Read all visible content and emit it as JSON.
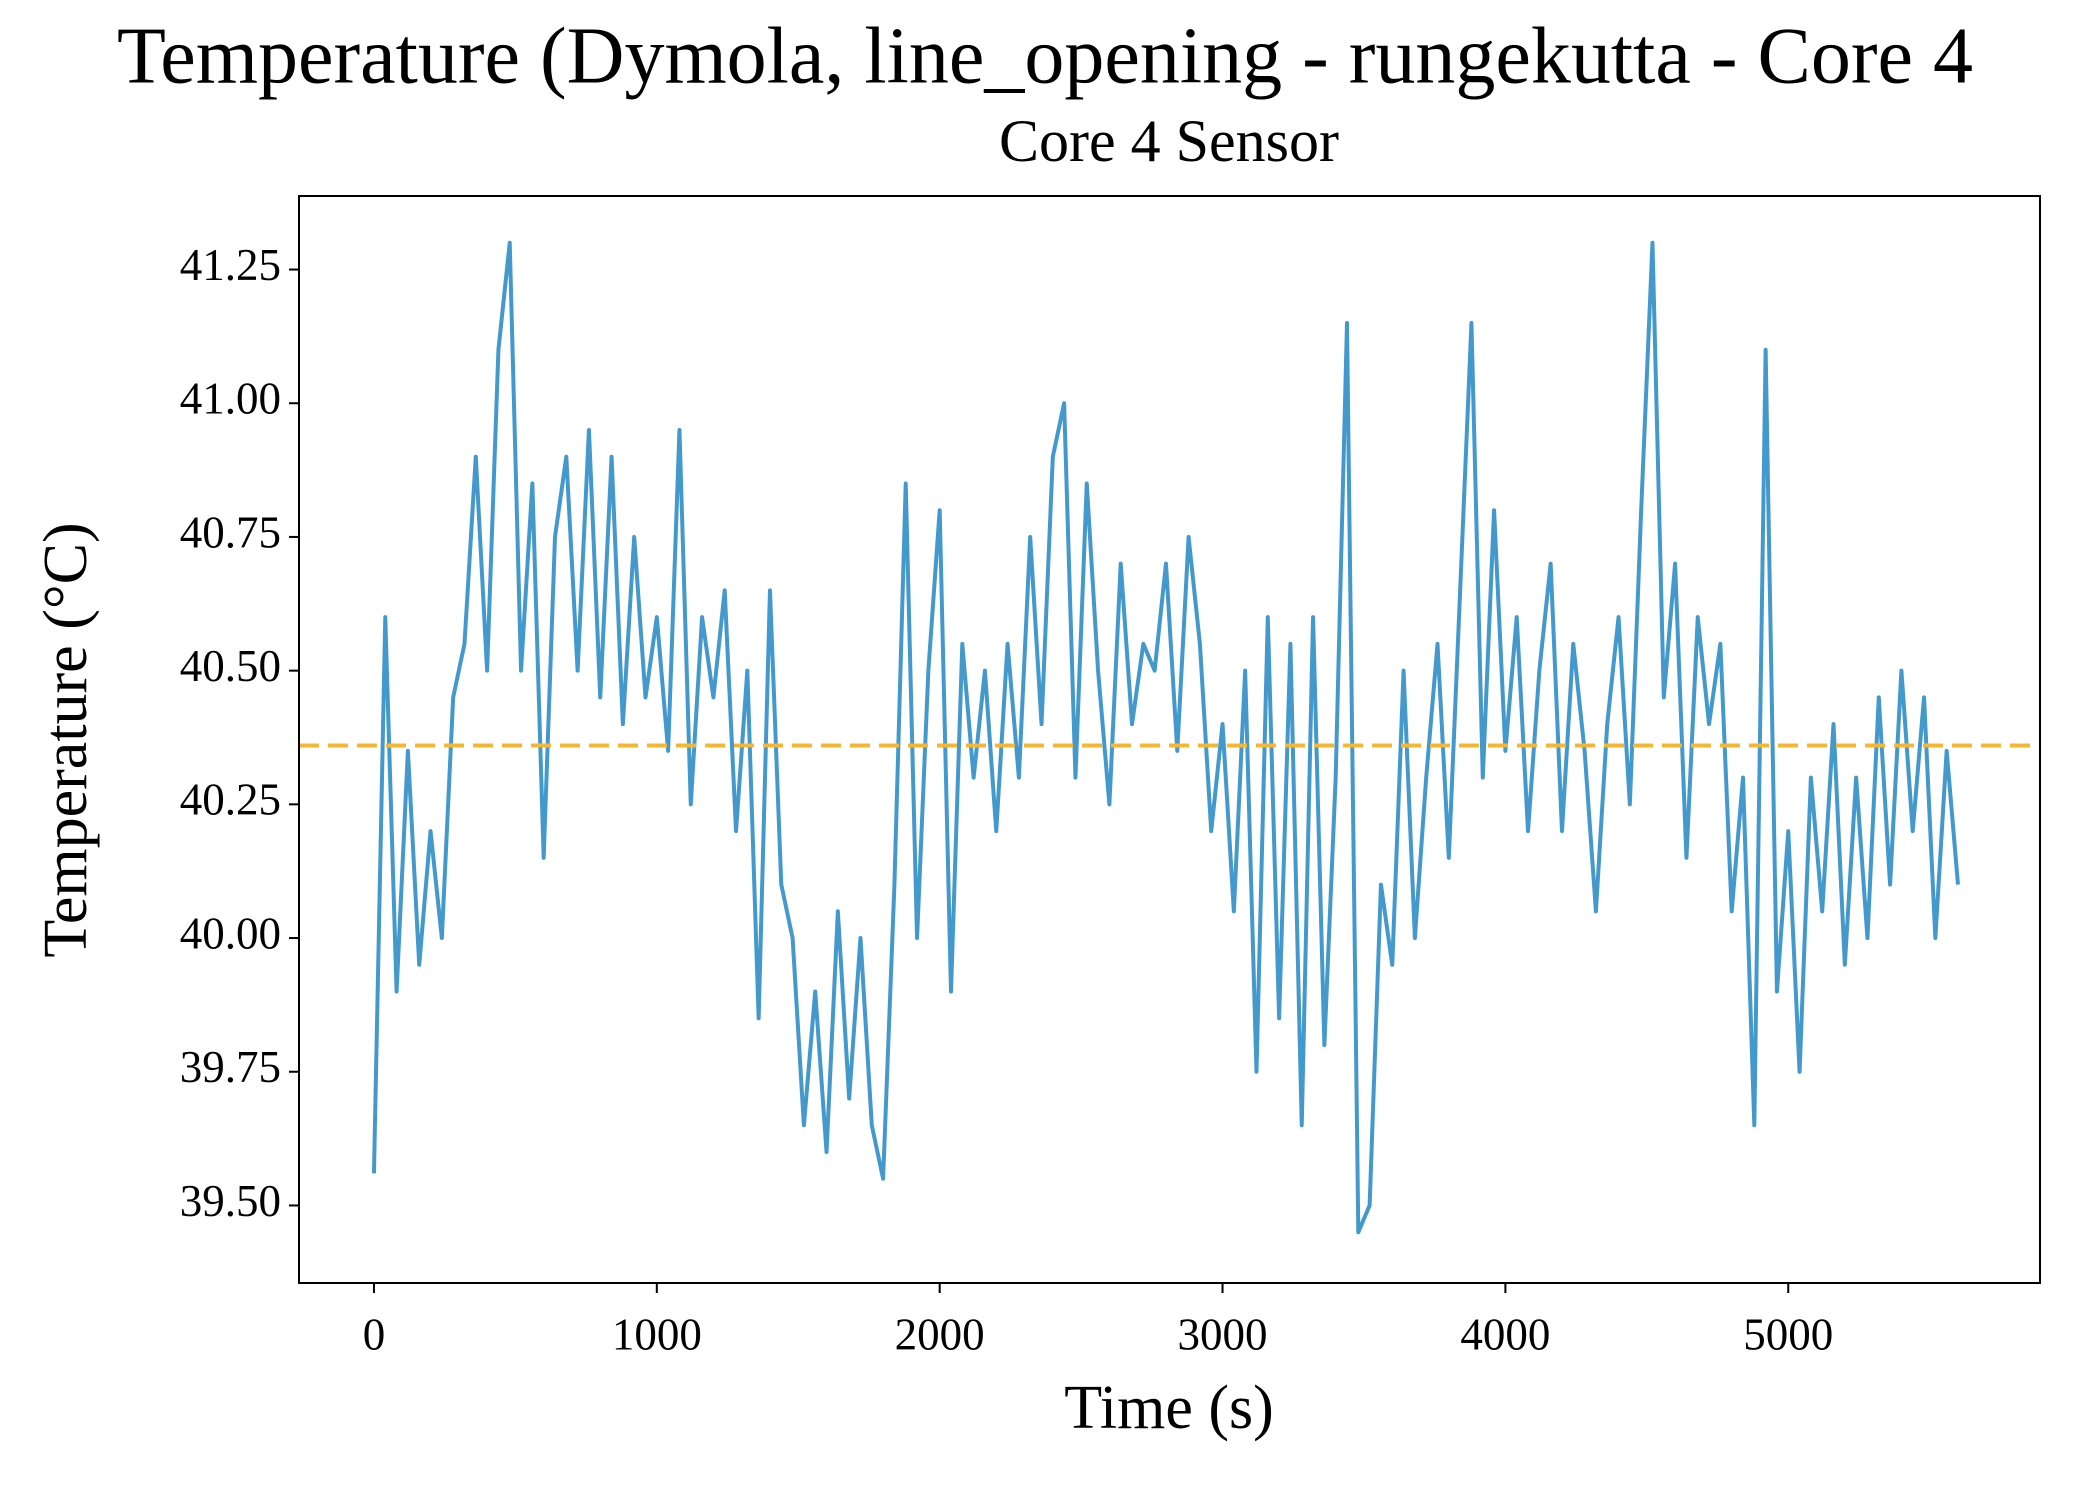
{
  "chart_data": {
    "type": "line",
    "title": "Temperature (Dymola, line_opening - rungekutta - Core 4",
    "subtitle": "Core 4 Sensor",
    "x_label": "Time (s)",
    "y_label": "Temperature (°C)",
    "x": [
      0,
      40,
      80,
      120,
      160,
      200,
      240,
      280,
      320,
      360,
      400,
      440,
      480,
      520,
      560,
      600,
      640,
      680,
      720,
      760,
      800,
      840,
      880,
      920,
      960,
      1000,
      1040,
      1080,
      1120,
      1160,
      1200,
      1240,
      1280,
      1320,
      1360,
      1400,
      1440,
      1480,
      1520,
      1560,
      1600,
      1640,
      1680,
      1720,
      1760,
      1800,
      1840,
      1880,
      1920,
      1960,
      2000,
      2040,
      2080,
      2120,
      2160,
      2200,
      2240,
      2280,
      2320,
      2360,
      2400,
      2440,
      2480,
      2520,
      2560,
      2600,
      2640,
      2680,
      2720,
      2760,
      2800,
      2840,
      2880,
      2920,
      2960,
      3000,
      3040,
      3080,
      3120,
      3160,
      3200,
      3240,
      3280,
      3320,
      3360,
      3400,
      3440,
      3480,
      3520,
      3560,
      3600,
      3640,
      3680,
      3720,
      3760,
      3800,
      3840,
      3880,
      3920,
      3960,
      4000,
      4040,
      4080,
      4120,
      4160,
      4200,
      4240,
      4280,
      4320,
      4360,
      4400,
      4440,
      4480,
      4520,
      4560,
      4600,
      4640,
      4680,
      4720,
      4760,
      4800,
      4840,
      4880,
      4920,
      4960,
      5000,
      5040,
      5080,
      5120,
      5160,
      5200,
      5240,
      5280,
      5320,
      5360,
      5400,
      5440,
      5480,
      5520,
      5560,
      5600
    ],
    "series": [
      {
        "color": "#4499cc",
        "values": [
          39.56,
          40.6,
          39.9,
          40.35,
          39.95,
          40.2,
          40.0,
          40.45,
          40.55,
          40.9,
          40.5,
          41.1,
          41.3,
          40.5,
          40.85,
          40.15,
          40.75,
          40.9,
          40.5,
          40.95,
          40.45,
          40.9,
          40.4,
          40.75,
          40.45,
          40.6,
          40.35,
          40.95,
          40.25,
          40.6,
          40.45,
          40.65,
          40.2,
          40.5,
          39.85,
          40.65,
          40.1,
          40.0,
          39.65,
          39.9,
          39.6,
          40.05,
          39.7,
          40.0,
          39.65,
          39.55,
          40.1,
          40.85,
          40.0,
          40.5,
          40.8,
          39.9,
          40.55,
          40.3,
          40.5,
          40.2,
          40.55,
          40.3,
          40.75,
          40.4,
          40.9,
          41.0,
          40.3,
          40.85,
          40.5,
          40.25,
          40.7,
          40.4,
          40.55,
          40.5,
          40.7,
          40.35,
          40.75,
          40.55,
          40.2,
          40.4,
          40.05,
          40.5,
          39.75,
          40.6,
          39.85,
          40.55,
          39.65,
          40.6,
          39.8,
          40.3,
          41.15,
          39.45,
          39.5,
          40.1,
          39.95,
          40.5,
          40.0,
          40.3,
          40.55,
          40.15,
          40.65,
          41.15,
          40.3,
          40.8,
          40.35,
          40.6,
          40.2,
          40.5,
          40.7,
          40.2,
          40.55,
          40.35,
          40.05,
          40.4,
          40.6,
          40.25,
          40.8,
          41.3,
          40.45,
          40.7,
          40.15,
          40.6,
          40.4,
          40.55,
          40.05,
          40.3,
          39.65,
          41.1,
          39.9,
          40.2,
          39.75,
          40.3,
          40.05,
          40.4,
          39.95,
          40.3,
          40.0,
          40.45,
          40.1,
          40.5,
          40.2,
          40.45,
          40.0,
          40.35,
          40.1
        ]
      }
    ],
    "hline": {
      "value": 40.36,
      "color": "#f5b731",
      "style": "dashed"
    },
    "xlim": [
      -265,
      5890
    ],
    "ylim": [
      39.355,
      41.3875
    ],
    "xticks": [
      0,
      1000,
      2000,
      3000,
      4000,
      5000
    ],
    "yticks": [
      {
        "value": 39.5,
        "label": "39.50"
      },
      39.75,
      {
        "value": 40,
        "label": "40.00"
      },
      40.25,
      {
        "value": 40.5,
        "label": "40.50"
      },
      40.75,
      {
        "value": 41,
        "label": "41.00"
      },
      41.25
    ],
    "grid": false
  }
}
